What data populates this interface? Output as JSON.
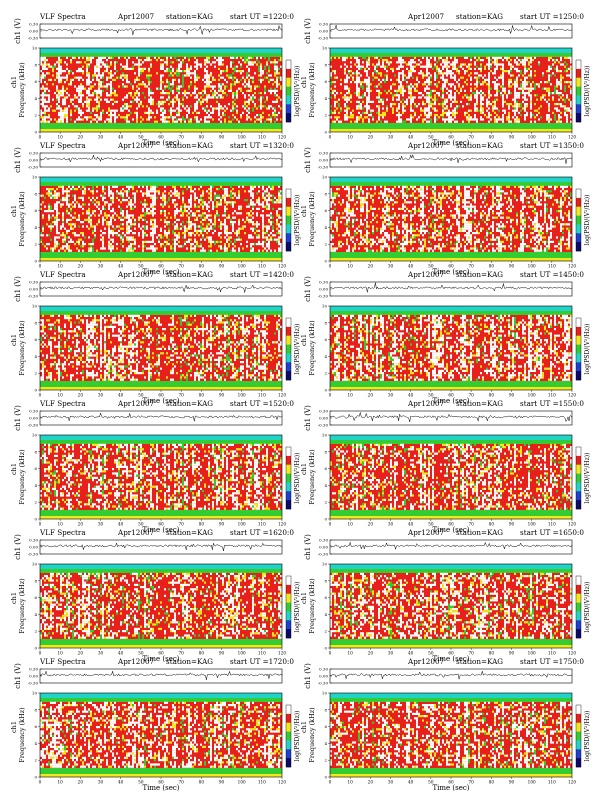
{
  "page": {
    "title_prefix": "VLF Spectra",
    "date": "Apr12007",
    "station_label": "station=KAG",
    "start_label": "start UT =",
    "xlabel": "Time (sec)",
    "ylabel_top": "ch1 (V)",
    "ylabel_spec": "Frequency (kHz)",
    "spec_channel": "ch1",
    "colorbar_label": "log(PSD/(V²/Hz))",
    "colors": {
      "white": "#ffffff",
      "red": "#e8201c",
      "yellow": "#f2e81a",
      "green": "#33cc33",
      "cyan": "#22d4c8",
      "blue": "#1f3fd0",
      "navy": "#0a0a6a"
    }
  },
  "chart_data": [
    {
      "type": "heatmap",
      "start_ut": "1220:0",
      "x": [
        0,
        120
      ],
      "xticks": [
        0,
        10,
        20,
        30,
        40,
        50,
        60,
        70,
        80,
        90,
        100,
        110,
        120
      ],
      "ylim_top": [
        -0.3,
        0.3
      ],
      "yticks_top": [
        -0.3,
        0,
        0.3
      ],
      "ylim_spec": [
        0,
        10
      ],
      "yticks_spec": [
        0,
        2,
        4,
        6,
        8,
        10
      ]
    },
    {
      "type": "heatmap",
      "start_ut": "1250:0",
      "x": [
        0,
        120
      ],
      "xticks": [
        0,
        10,
        20,
        30,
        40,
        50,
        60,
        70,
        80,
        90,
        100,
        110,
        120
      ],
      "ylim_top": [
        -0.3,
        0.3
      ],
      "yticks_top": [
        -0.3,
        0,
        0.3
      ],
      "ylim_spec": [
        0,
        10
      ],
      "yticks_spec": [
        0,
        2,
        4,
        6,
        8,
        10
      ]
    },
    {
      "type": "heatmap",
      "start_ut": "1320:0",
      "x": [
        0,
        120
      ],
      "xticks": [
        0,
        10,
        20,
        30,
        40,
        50,
        60,
        70,
        80,
        90,
        100,
        110,
        120
      ],
      "ylim_top": [
        -0.3,
        0.3
      ],
      "yticks_top": [
        -0.3,
        0,
        0.3
      ],
      "ylim_spec": [
        0,
        10
      ],
      "yticks_spec": [
        0,
        2,
        4,
        6,
        8,
        10
      ]
    },
    {
      "type": "heatmap",
      "start_ut": "1350:0",
      "x": [
        0,
        120
      ],
      "xticks": [
        0,
        10,
        20,
        30,
        40,
        50,
        60,
        70,
        80,
        90,
        100,
        110,
        120
      ],
      "ylim_top": [
        -0.3,
        0.3
      ],
      "yticks_top": [
        -0.3,
        0,
        0.3
      ],
      "ylim_spec": [
        0,
        10
      ],
      "yticks_spec": [
        0,
        2,
        4,
        6,
        8,
        10
      ]
    },
    {
      "type": "heatmap",
      "start_ut": "1420:0",
      "x": [
        0,
        120
      ],
      "xticks": [
        0,
        10,
        20,
        30,
        40,
        50,
        60,
        70,
        80,
        90,
        100,
        110,
        120
      ],
      "ylim_top": [
        -0.3,
        0.3
      ],
      "yticks_top": [
        -0.3,
        0,
        0.3
      ],
      "ylim_spec": [
        0,
        10
      ],
      "yticks_spec": [
        0,
        2,
        4,
        6,
        8,
        10
      ]
    },
    {
      "type": "heatmap",
      "start_ut": "1450:0",
      "x": [
        0,
        120
      ],
      "xticks": [
        0,
        10,
        20,
        30,
        40,
        50,
        60,
        70,
        80,
        90,
        100,
        110,
        120
      ],
      "ylim_top": [
        -0.3,
        0.3
      ],
      "yticks_top": [
        -0.3,
        0,
        0.3
      ],
      "ylim_spec": [
        0,
        10
      ],
      "yticks_spec": [
        0,
        2,
        4,
        6,
        8,
        10
      ]
    },
    {
      "type": "heatmap",
      "start_ut": "1520:0",
      "x": [
        0,
        120
      ],
      "xticks": [
        0,
        10,
        20,
        30,
        40,
        50,
        60,
        70,
        80,
        90,
        100,
        110,
        120
      ],
      "ylim_top": [
        -0.3,
        0.3
      ],
      "yticks_top": [
        -0.3,
        0,
        0.3
      ],
      "ylim_spec": [
        0,
        10
      ],
      "yticks_spec": [
        0,
        2,
        4,
        6,
        8,
        10
      ]
    },
    {
      "type": "heatmap",
      "start_ut": "1550:0",
      "x": [
        0,
        120
      ],
      "xticks": [
        0,
        10,
        20,
        30,
        40,
        50,
        60,
        70,
        80,
        90,
        100,
        110,
        120
      ],
      "ylim_top": [
        -0.3,
        0.3
      ],
      "yticks_top": [
        -0.3,
        0,
        0.3
      ],
      "ylim_spec": [
        0,
        10
      ],
      "yticks_spec": [
        0,
        2,
        4,
        6,
        8,
        10
      ]
    },
    {
      "type": "heatmap",
      "start_ut": "1620:0",
      "x": [
        0,
        120
      ],
      "xticks": [
        0,
        10,
        20,
        30,
        40,
        50,
        60,
        70,
        80,
        90,
        100,
        110,
        120
      ],
      "ylim_top": [
        -0.3,
        0.3
      ],
      "yticks_top": [
        -0.3,
        0,
        0.3
      ],
      "ylim_spec": [
        0,
        10
      ],
      "yticks_spec": [
        0,
        2,
        4,
        6,
        8,
        10
      ]
    },
    {
      "type": "heatmap",
      "start_ut": "1650:0",
      "x": [
        0,
        120
      ],
      "xticks": [
        0,
        10,
        20,
        30,
        40,
        50,
        60,
        70,
        80,
        90,
        100,
        110,
        120
      ],
      "ylim_top": [
        -0.3,
        0.3
      ],
      "yticks_top": [
        -0.3,
        0,
        0.3
      ],
      "ylim_spec": [
        0,
        10
      ],
      "yticks_spec": [
        0,
        2,
        4,
        6,
        8,
        10
      ]
    },
    {
      "type": "heatmap",
      "start_ut": "1720:0",
      "x": [
        0,
        120
      ],
      "xticks": [
        0,
        10,
        20,
        30,
        40,
        50,
        60,
        70,
        80,
        90,
        100,
        110,
        120
      ],
      "ylim_top": [
        -0.3,
        0.3
      ],
      "yticks_top": [
        -0.3,
        0,
        0.3
      ],
      "ylim_spec": [
        0,
        10
      ],
      "yticks_spec": [
        0,
        2,
        4,
        6,
        8,
        10
      ]
    },
    {
      "type": "heatmap",
      "start_ut": "1750:0",
      "x": [
        0,
        120
      ],
      "xticks": [
        0,
        10,
        20,
        30,
        40,
        50,
        60,
        70,
        80,
        90,
        100,
        110,
        120
      ],
      "ylim_top": [
        -0.3,
        0.3
      ],
      "yticks_top": [
        -0.3,
        0,
        0.3
      ],
      "ylim_spec": [
        0,
        10
      ],
      "yticks_spec": [
        0,
        2,
        4,
        6,
        8,
        10
      ]
    }
  ]
}
